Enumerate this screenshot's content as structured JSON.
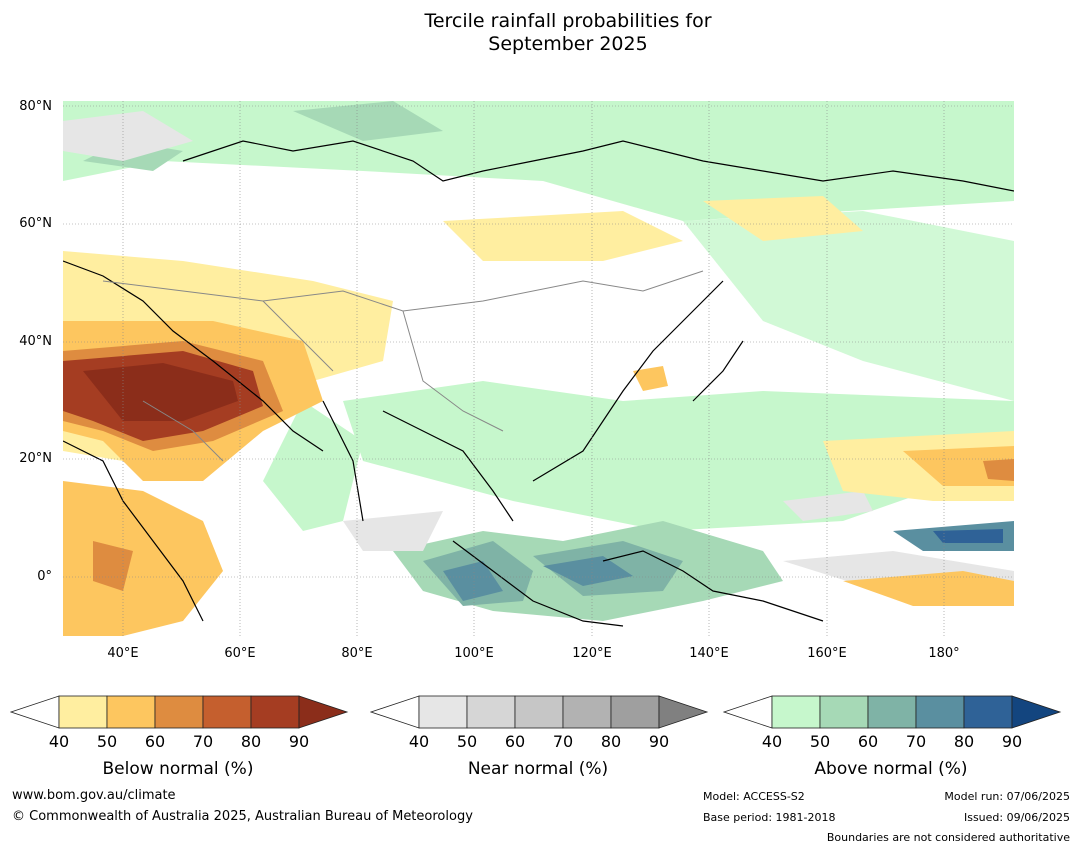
{
  "title_line1": "Tercile rainfall probabilities for",
  "title_line2": "September 2025",
  "lat_labels": [
    "80°N",
    "60°N",
    "40°N",
    "20°N",
    "0°"
  ],
  "lon_labels": [
    "40°E",
    "60°E",
    "80°E",
    "100°E",
    "120°E",
    "140°E",
    "160°E",
    "180°"
  ],
  "colorbars": [
    {
      "label": "Below normal (%)",
      "ticks": [
        "40",
        "50",
        "60",
        "70",
        "80",
        "90"
      ],
      "colors": [
        "#ffeea0",
        "#fdc65f",
        "#de8c40",
        "#c55f2e",
        "#a53d22",
        "#8b2d1a"
      ]
    },
    {
      "label": "Near normal (%)",
      "ticks": [
        "40",
        "50",
        "60",
        "70",
        "80",
        "90"
      ],
      "colors": [
        "#e6e6e6",
        "#d6d6d6",
        "#c6c6c6",
        "#b2b2b2",
        "#9f9f9f",
        "#808080"
      ]
    },
    {
      "label": "Above normal (%)",
      "ticks": [
        "40",
        "50",
        "60",
        "70",
        "80",
        "90"
      ],
      "colors": [
        "#c6f7cc",
        "#a6d9b6",
        "#7fb3a6",
        "#5a8fa0",
        "#2f6297",
        "#13457f"
      ]
    }
  ],
  "footer": {
    "website": "www.bom.gov.au/climate",
    "copyright": "© Commonwealth of Australia 2025, Australian Bureau of Meteorology",
    "model": "Model: ACCESS-S2",
    "base_period": "Base period: 1981-2018",
    "model_run": "Model run: 07/06/2025",
    "issued": "Issued: 09/06/2025",
    "boundaries": "Boundaries are not considered authoritative"
  }
}
